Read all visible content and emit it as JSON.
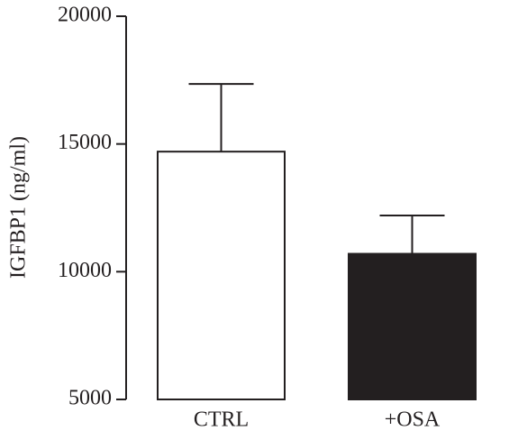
{
  "chart_data": {
    "type": "bar",
    "y_label": "IGFBP1 (ng/ml)",
    "categories": [
      "CTRL",
      "+OSA"
    ],
    "values": [
      14700,
      10700
    ],
    "errors": [
      2650,
      1500
    ],
    "colors": [
      "#ffffff",
      "#231f20"
    ],
    "ylim": [
      5000,
      20000
    ],
    "yticks": [
      5000,
      10000,
      15000,
      20000
    ]
  }
}
